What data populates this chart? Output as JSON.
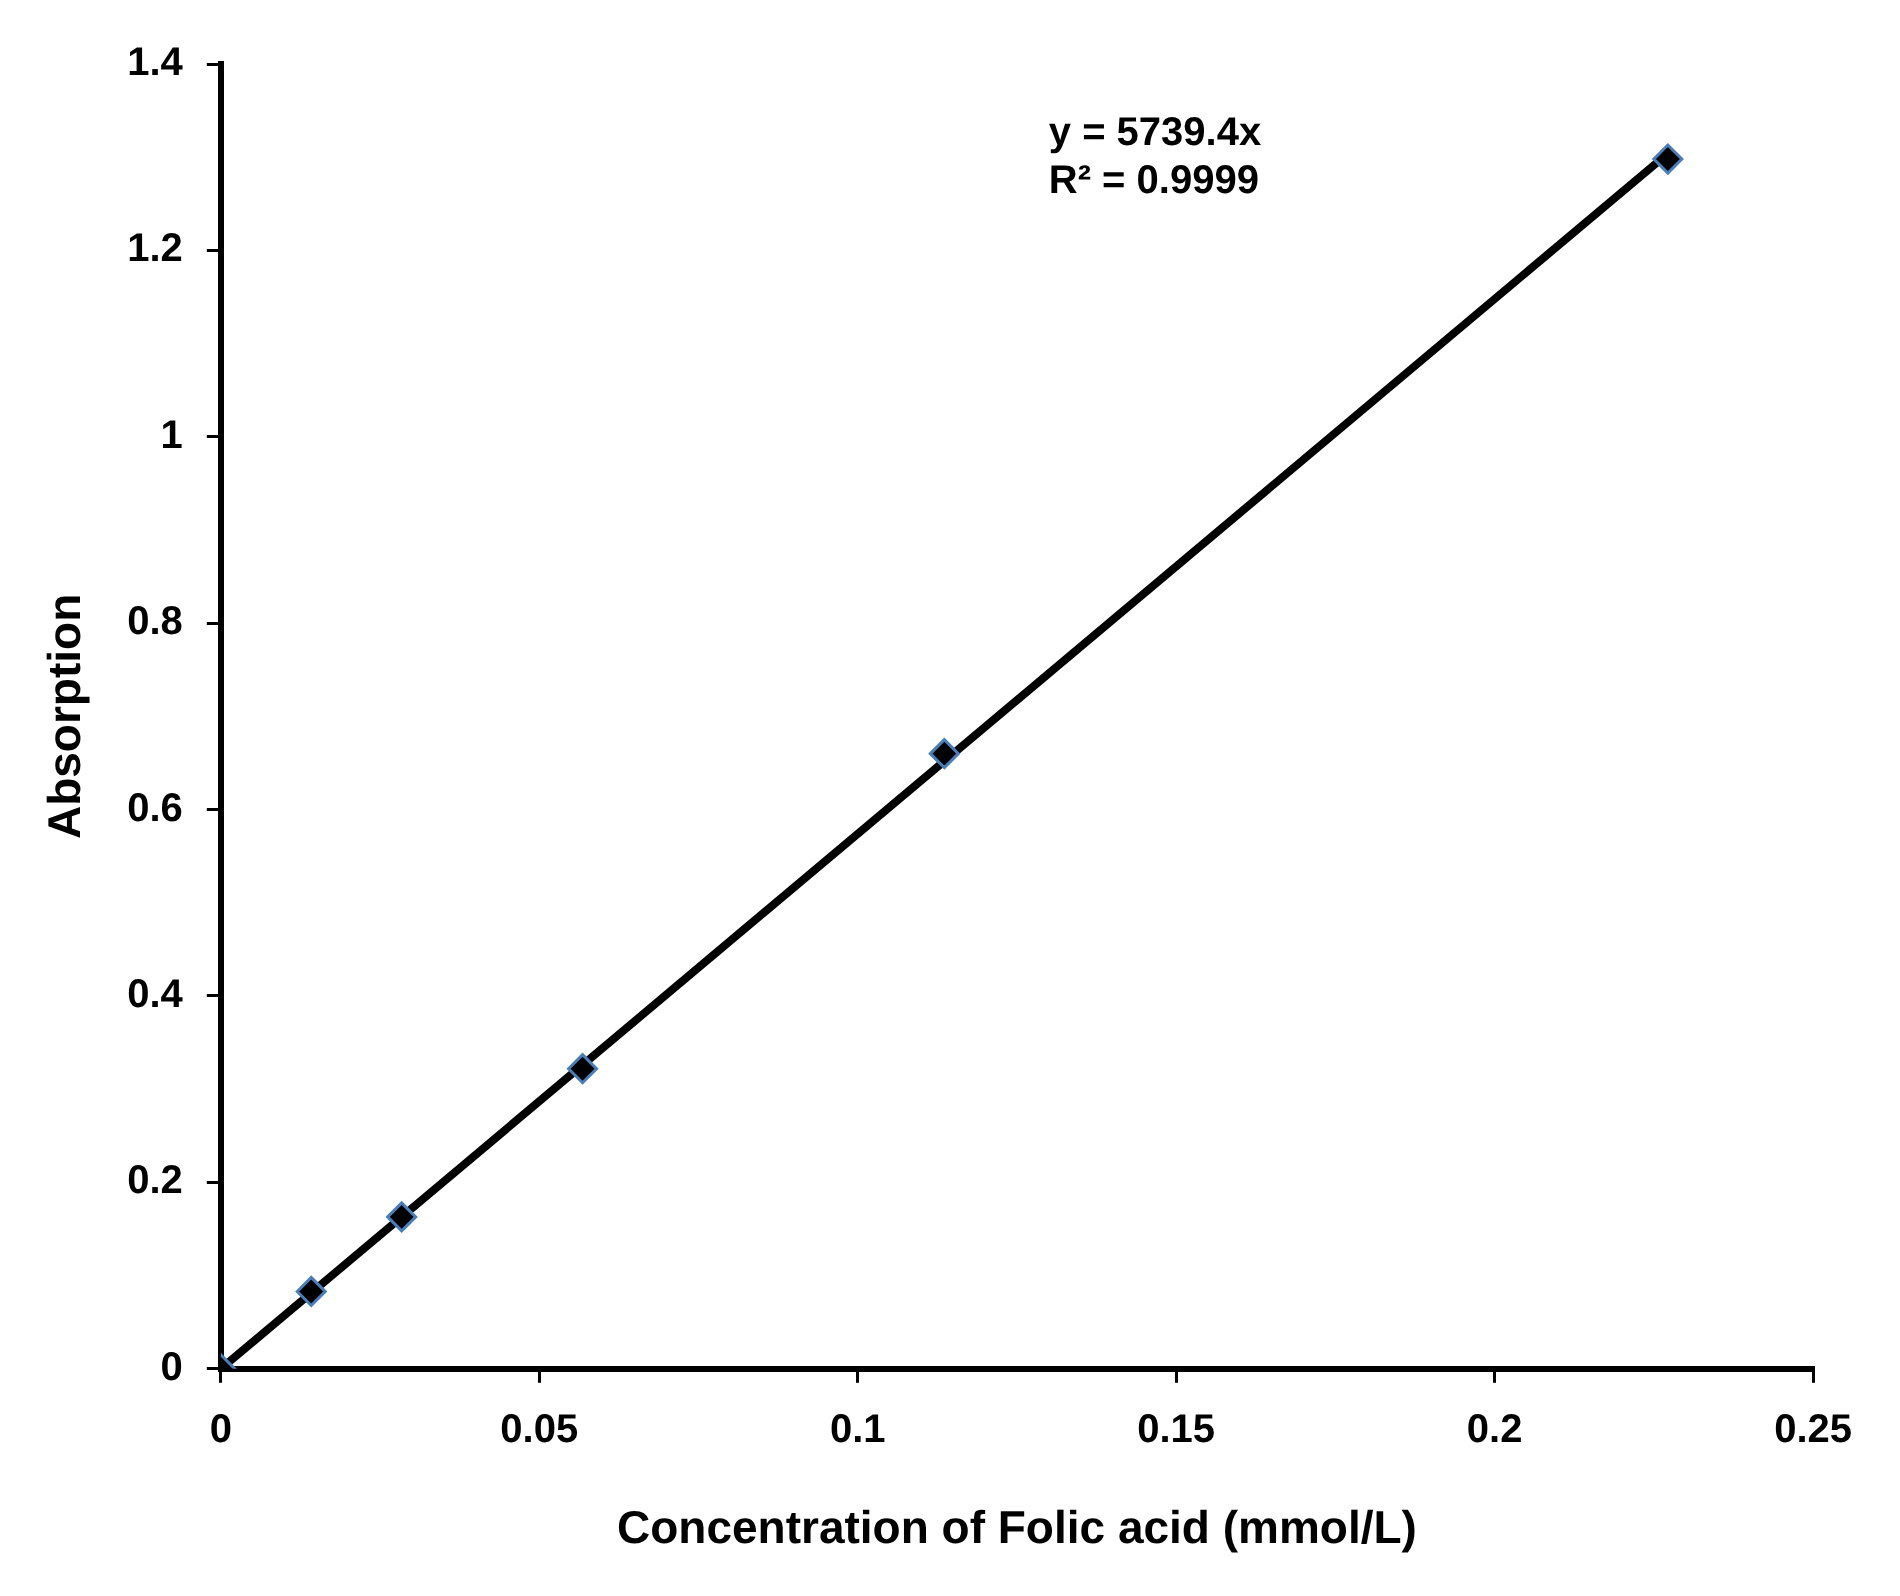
{
  "chart_data": {
    "type": "scatter",
    "xlabel": "Concentration of Folic acid (mmol/L)",
    "ylabel": "Absorption",
    "annotations": [
      "y = 5739.4x",
      "R² = 0.9999"
    ],
    "series": [
      {
        "type": "scatter",
        "color": "#000000",
        "marker": "diamond",
        "x": [
          0,
          0.0142,
          0.0284,
          0.0568,
          0.1136,
          0.2272
        ],
        "values": [
          0,
          0.083,
          0.163,
          0.322,
          0.66,
          1.298
        ]
      },
      {
        "type": "line",
        "color": "#000000",
        "marker": "none",
        "line_style": "solid",
        "x": [
          0,
          0.2272
        ],
        "values": [
          0,
          1.304
        ]
      }
    ],
    "xlim": [
      0,
      0.25
    ],
    "xticks": [
      0,
      0.05,
      0.1,
      0.15,
      0.2,
      0.25
    ],
    "ylim": [
      0,
      1.4
    ],
    "yticks": [
      0,
      0.2,
      0.4,
      0.6,
      0.8,
      1,
      1.2,
      1.4
    ],
    "grid": false,
    "legend": false
  }
}
